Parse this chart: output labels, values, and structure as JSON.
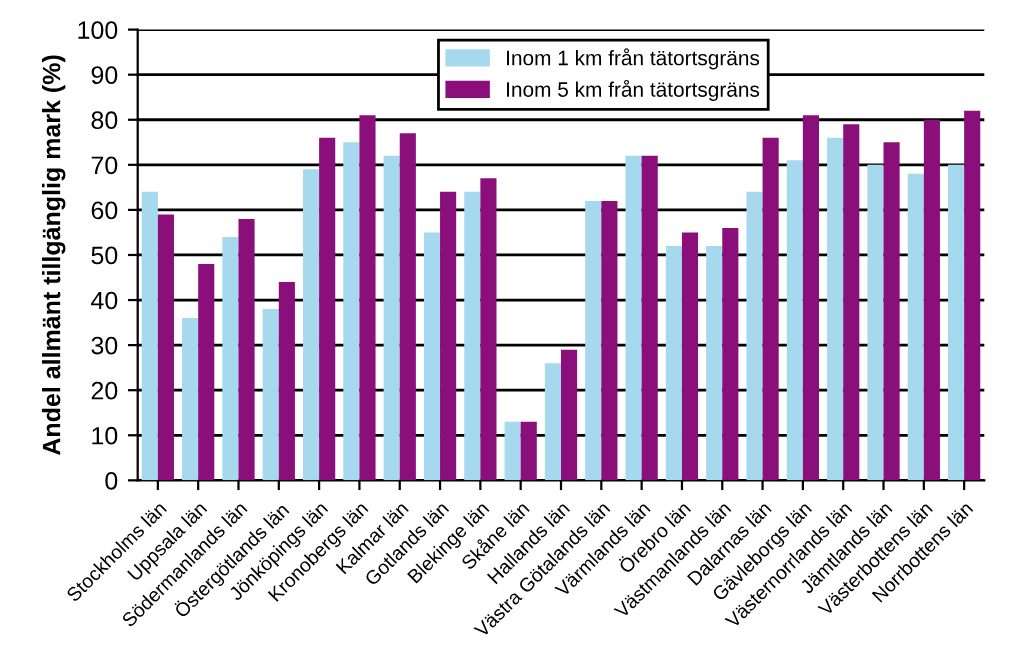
{
  "chart_data": {
    "type": "bar",
    "ylabel": "Andel allmänt tillgänglig mark (%)",
    "categories": [
      "Stockholms län",
      "Uppsala län",
      "Södermanlands län",
      "Östergötlands län",
      "Jönköpings län",
      "Kronobergs län",
      "Kalmar län",
      "Gotlands län",
      "Blekinge län",
      "Skåne län",
      "Hallands län",
      "Västra Götalands län",
      "Värmlands län",
      "Örebro län",
      "Västmanlands län",
      "Dalarnas län",
      "Gävleborgs län",
      "Västernorrlands län",
      "Jämtlands län",
      "Västerbottens län",
      "Norrbottens län"
    ],
    "series": [
      {
        "name": "Inom 1 km från tätortsgräns",
        "color": "#a6d8ee",
        "values": [
          64,
          36,
          54,
          38,
          69,
          75,
          72,
          55,
          64,
          13,
          26,
          62,
          72,
          52,
          52,
          64,
          71,
          76,
          70,
          68,
          70
        ]
      },
      {
        "name": "Inom 5 km från tätortsgräns",
        "color": "#8b0f7a",
        "values": [
          59,
          48,
          58,
          44,
          76,
          81,
          77,
          64,
          67,
          13,
          29,
          62,
          72,
          55,
          56,
          76,
          81,
          79,
          75,
          80,
          82
        ]
      }
    ],
    "ylim": [
      0,
      100
    ],
    "yticks": [
      0,
      10,
      20,
      30,
      40,
      50,
      60,
      70,
      80,
      90,
      100
    ],
    "grid": "y",
    "legend": "top"
  }
}
